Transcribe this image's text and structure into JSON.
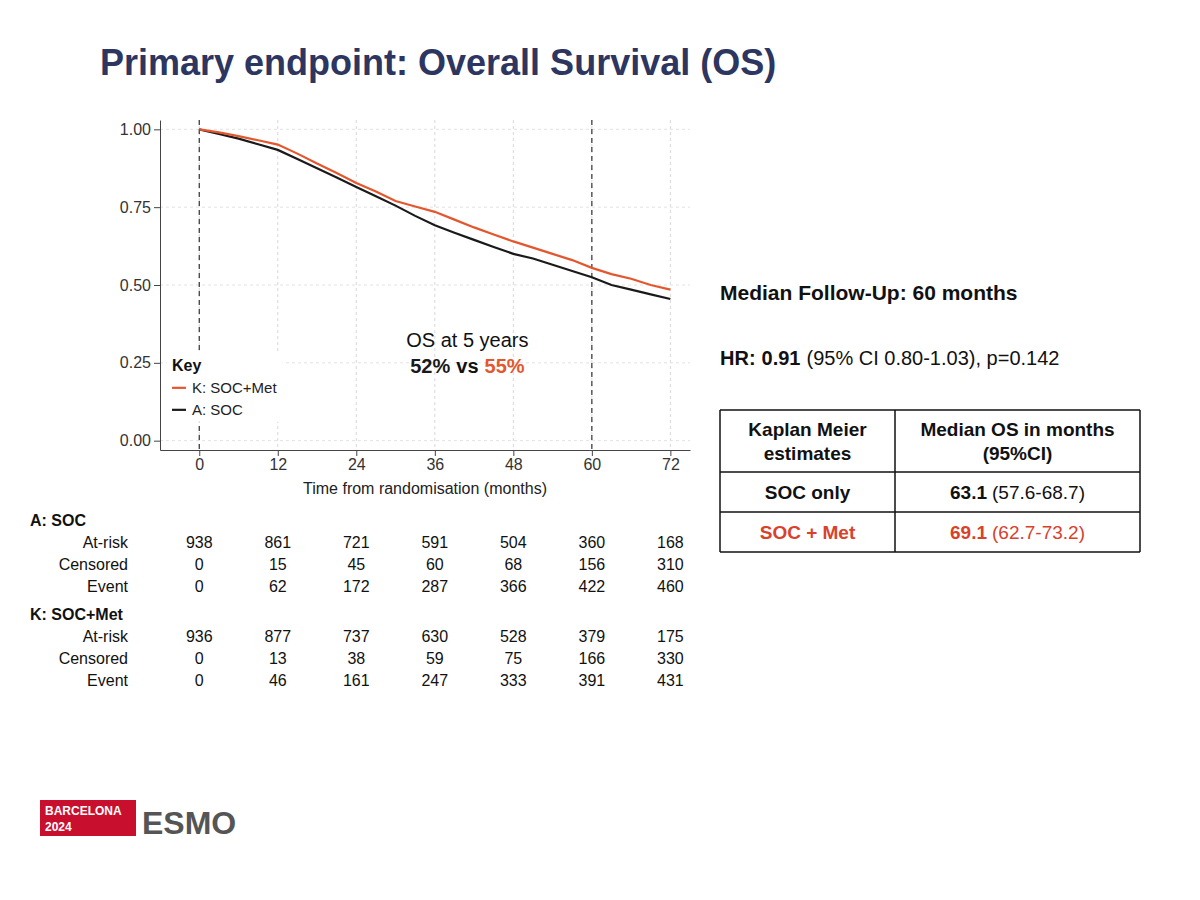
{
  "chart_data": {
    "type": "line",
    "title": "Primary endpoint: Overall Survival (OS)",
    "x_label": "Time from randomisation (months)",
    "xlim": [
      -6,
      75
    ],
    "xticks": [
      0,
      12,
      24,
      36,
      48,
      60,
      72
    ],
    "ylim": [
      -0.03,
      1.03
    ],
    "yticks": [
      {
        "value": 0,
        "label": "0.00"
      },
      {
        "value": 0.25,
        "label": "0.25"
      },
      {
        "value": 0.5,
        "label": "0.50"
      },
      {
        "value": 0.75,
        "label": "0.75"
      },
      {
        "value": 1,
        "label": "1.00"
      }
    ],
    "grid": true,
    "legend": "lower left",
    "legend_title": "Key",
    "x": [
      0,
      3,
      6,
      9,
      12,
      15,
      18,
      21,
      24,
      27,
      30,
      33,
      36,
      39,
      42,
      45,
      48,
      51,
      54,
      57,
      60,
      63,
      66,
      69,
      72
    ],
    "series": [
      {
        "name": "K: SOC+Met",
        "color": "#e4572e",
        "values": [
          1.0,
          0.99,
          0.978,
          0.965,
          0.951,
          0.922,
          0.89,
          0.86,
          0.828,
          0.8,
          0.77,
          0.752,
          0.735,
          0.71,
          0.685,
          0.662,
          0.64,
          0.62,
          0.6,
          0.58,
          0.555,
          0.535,
          0.52,
          0.5,
          0.485
        ]
      },
      {
        "name": "A: SOC",
        "color": "#1a1a1a",
        "values": [
          1.0,
          0.985,
          0.97,
          0.952,
          0.934,
          0.905,
          0.875,
          0.845,
          0.815,
          0.785,
          0.755,
          0.722,
          0.692,
          0.668,
          0.645,
          0.622,
          0.6,
          0.585,
          0.565,
          0.545,
          0.525,
          0.5,
          0.485,
          0.47,
          0.455
        ]
      }
    ],
    "reference_x": [
      0,
      60
    ],
    "annotation": {
      "title": "OS at 5 years",
      "values": [
        "52%",
        "55%"
      ],
      "separator": "vs",
      "colors": [
        "#1a1a1a",
        "#e4572e"
      ]
    },
    "follow_up": "Median Follow-Up: 60 months",
    "hr": {
      "label": "HR:",
      "value": "0.91",
      "detail": "(95% CI 0.80-1.03), p=0.142"
    },
    "table": {
      "header": [
        "Kaplan Meier estimates",
        "Median OS in months (95%CI)"
      ],
      "rows": [
        {
          "cells": [
            "SOC only",
            "63.1 (57.6-68.7)"
          ],
          "color": "#111111"
        },
        {
          "cells": [
            "SOC + Met",
            "69.1 (62.7-73.2)"
          ],
          "color": "#d9412b"
        }
      ]
    },
    "risk_table": [
      {
        "name": "A: SOC",
        "rows": [
          {
            "label": "At-risk",
            "values": [
              938,
              861,
              721,
              591,
              504,
              360,
              168
            ]
          },
          {
            "label": "Censored",
            "values": [
              0,
              15,
              45,
              60,
              68,
              156,
              310
            ]
          },
          {
            "label": "Event",
            "values": [
              0,
              62,
              172,
              287,
              366,
              422,
              460
            ]
          }
        ]
      },
      {
        "name": "K: SOC+Met",
        "rows": [
          {
            "label": "At-risk",
            "values": [
              936,
              877,
              737,
              630,
              528,
              379,
              175
            ]
          },
          {
            "label": "Censored",
            "values": [
              0,
              13,
              38,
              59,
              75,
              166,
              330
            ]
          },
          {
            "label": "Event",
            "values": [
              0,
              46,
              161,
              247,
              333,
              391,
              431
            ]
          }
        ]
      }
    ],
    "footer": {
      "city": "BARCELONA",
      "year": "2024",
      "brand": "ESMO"
    }
  }
}
